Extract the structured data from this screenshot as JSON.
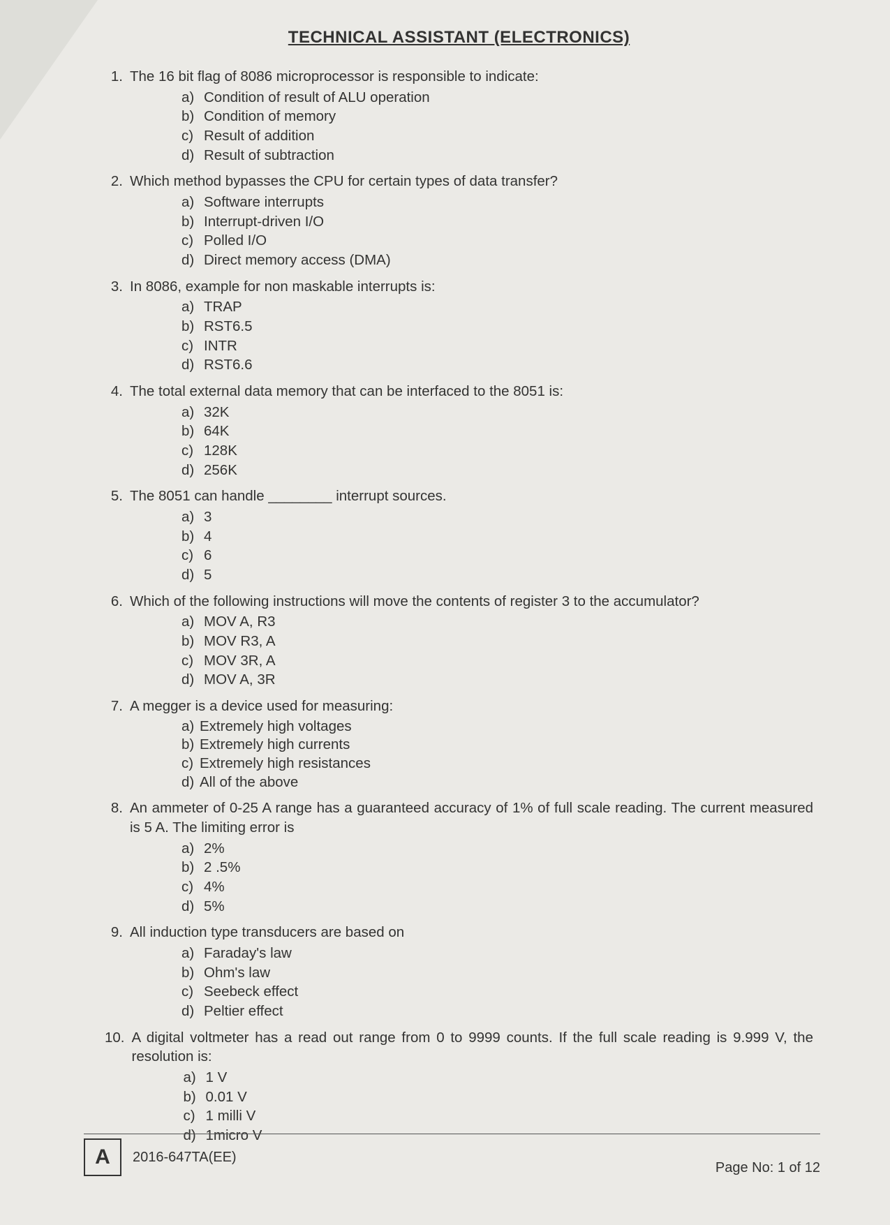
{
  "title": "TECHNICAL ASSISTANT (ELECTRONICS)",
  "questions": [
    {
      "num": "1.",
      "text": "The 16 bit flag of 8086 microprocessor is responsible to indicate:",
      "options": [
        {
          "l": "a)",
          "t": "Condition of result of ALU operation"
        },
        {
          "l": "b)",
          "t": "Condition of memory"
        },
        {
          "l": "c)",
          "t": "Result of addition"
        },
        {
          "l": "d)",
          "t": "Result of subtraction"
        }
      ]
    },
    {
      "num": "2.",
      "text": "Which method bypasses the CPU for certain types of data transfer?",
      "options": [
        {
          "l": "a)",
          "t": "Software interrupts"
        },
        {
          "l": "b)",
          "t": "Interrupt-driven I/O"
        },
        {
          "l": "c)",
          "t": "Polled I/O"
        },
        {
          "l": "d)",
          "t": "Direct memory access (DMA)"
        }
      ]
    },
    {
      "num": "3.",
      "text": "In 8086, example for non maskable interrupts is:",
      "options": [
        {
          "l": "a)",
          "t": "TRAP"
        },
        {
          "l": "b)",
          "t": "RST6.5"
        },
        {
          "l": "c)",
          "t": "INTR"
        },
        {
          "l": "d)",
          "t": "RST6.6"
        }
      ]
    },
    {
      "num": "4.",
      "text": "The total external data memory that can be interfaced to the 8051 is:",
      "options": [
        {
          "l": "a)",
          "t": "32K"
        },
        {
          "l": "b)",
          "t": "64K"
        },
        {
          "l": "c)",
          "t": "128K"
        },
        {
          "l": "d)",
          "t": "256K"
        }
      ]
    },
    {
      "num": "5.",
      "text": "The 8051 can handle ________ interrupt sources.",
      "options": [
        {
          "l": "a)",
          "t": "3"
        },
        {
          "l": "b)",
          "t": "4"
        },
        {
          "l": "c)",
          "t": "6"
        },
        {
          "l": "d)",
          "t": "5"
        }
      ]
    },
    {
      "num": "6.",
      "text": "Which of the following instructions will move the contents of register 3 to the accumulator?",
      "options": [
        {
          "l": "a)",
          "t": "MOV A, R3"
        },
        {
          "l": "b)",
          "t": "MOV R3, A"
        },
        {
          "l": "c)",
          "t": "MOV 3R, A"
        },
        {
          "l": "d)",
          "t": "MOV A, 3R"
        }
      ]
    },
    {
      "num": "7.",
      "text": "A megger is a device used for measuring:",
      "tight": true,
      "options": [
        {
          "l": "a)",
          "t": "Extremely high voltages"
        },
        {
          "l": "b)",
          "t": "Extremely high currents"
        },
        {
          "l": "c)",
          "t": "Extremely high resistances"
        },
        {
          "l": "d)",
          "t": "All of the above"
        }
      ]
    },
    {
      "num": "8.",
      "text": "An ammeter of 0-25 A range has a guaranteed accuracy of 1% of full scale reading. The current measured is 5 A. The limiting error is",
      "options": [
        {
          "l": "a)",
          "t": "2%"
        },
        {
          "l": "b)",
          "t": "2 .5%"
        },
        {
          "l": "c)",
          "t": "4%"
        },
        {
          "l": "d)",
          "t": "5%"
        }
      ]
    },
    {
      "num": "9.",
      "text": "All induction type transducers are based on",
      "options": [
        {
          "l": "a)",
          "t": "Faraday's law"
        },
        {
          "l": "b)",
          "t": "Ohm's law"
        },
        {
          "l": "c)",
          "t": "Seebeck effect"
        },
        {
          "l": "d)",
          "t": "Peltier effect"
        }
      ]
    },
    {
      "num": "10.",
      "text": "A digital voltmeter has a read out range from 0 to 9999 counts. If the full scale reading is 9.999 V, the resolution is:",
      "options": [
        {
          "l": "a)",
          "t": "1 V"
        },
        {
          "l": "b)",
          "t": "0.01 V"
        },
        {
          "l": "c)",
          "t": "1 milli V"
        },
        {
          "l": "d)",
          "t": "1micro V"
        }
      ]
    }
  ],
  "footer": {
    "box": "A",
    "code": "2016-647TA(EE)",
    "page": "Page No: 1 of 12"
  }
}
